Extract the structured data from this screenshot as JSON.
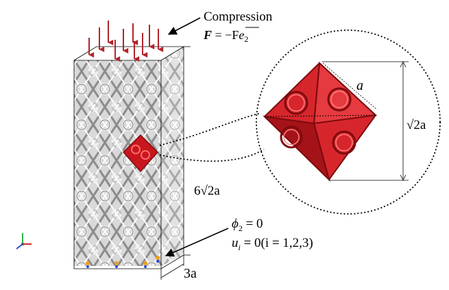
{
  "labels": {
    "compression_title": "Compression",
    "force_F": "F",
    "force_eq": " = −F",
    "force_e": "e",
    "force_sub": "2",
    "a_label": "a",
    "sqrt2a_label": "√2a",
    "height_label": "6√2a",
    "depth_label": "3a",
    "phi_label": "ϕ",
    "phi_sub": "2",
    "phi_eq": " = 0",
    "u_label": "u",
    "u_sub": "i",
    "u_eq": " = 0(i = 1,2,3)"
  },
  "colors": {
    "arrow_red": "#b2242a",
    "lattice_red": "#c8161d",
    "lattice_dark_red": "#7d0a0e",
    "lattice_grey": "#9a9a9a",
    "lattice_light": "#e6e6e6",
    "line_black": "#000000"
  }
}
